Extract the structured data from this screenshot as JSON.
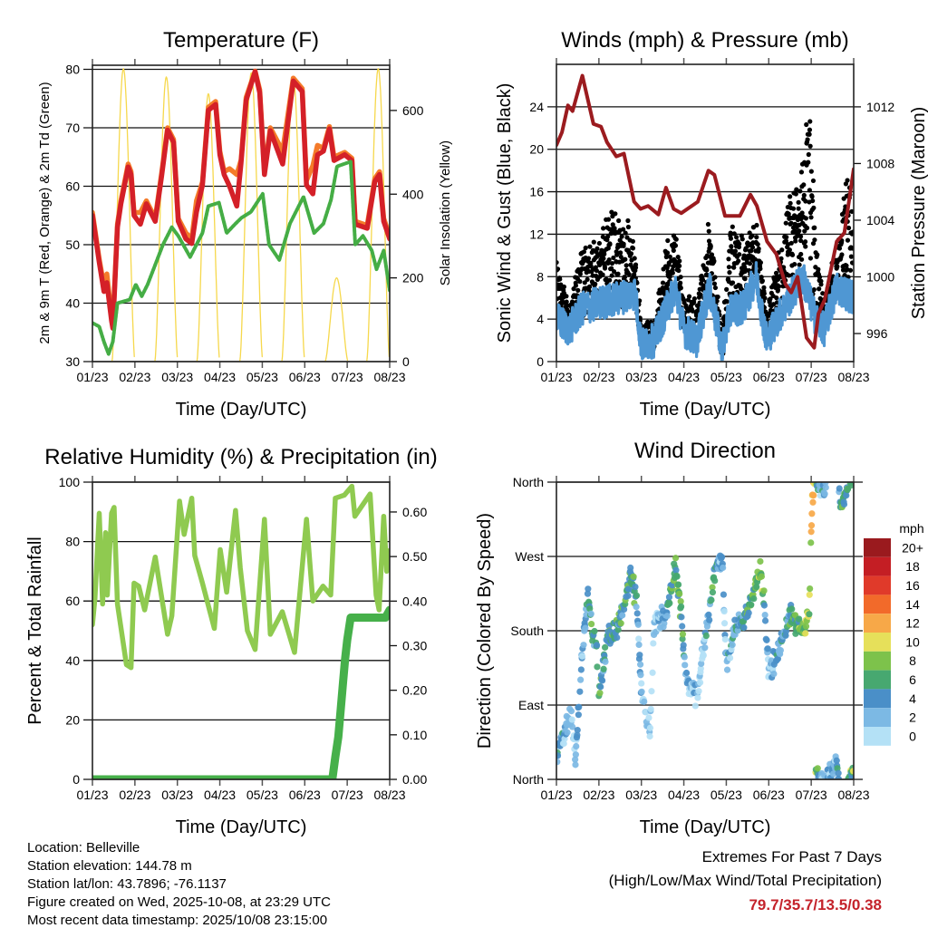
{
  "chart_data": [
    {
      "type": "line",
      "title": "Temperature (F)",
      "xlabel": "Time (Day/UTC)",
      "ylabel": "2m & 9m T (Red, Orange) & 2m Td (Green)",
      "ylabel_right": "Solar Insolation (Yellow)",
      "xlim_days": [
        0,
        7
      ],
      "xtick_labels": [
        "01/23",
        "02/23",
        "03/23",
        "04/23",
        "05/23",
        "06/23",
        "07/23",
        "08/23"
      ],
      "ylim": [
        30,
        80.7
      ],
      "yticks": [
        30,
        40,
        50,
        60,
        70,
        80
      ],
      "ytick_labels": [
        "30",
        "40",
        "50",
        "60",
        "70",
        "80"
      ],
      "ylim_right": [
        0,
        708
      ],
      "yticks_right": [
        0,
        200,
        400,
        600
      ],
      "ytick_labels_right": [
        "0",
        "200",
        "400",
        "600"
      ],
      "grid": true,
      "series": [
        {
          "name": "9m T",
          "color": "#f47b2a",
          "x": [
            0,
            0.16,
            0.27,
            0.34,
            0.45,
            0.48,
            0.59,
            0.67,
            0.84,
            0.91,
            0.98,
            1.13,
            1.27,
            1.48,
            1.63,
            1.77,
            1.91,
            2.02,
            2.2,
            2.34,
            2.45,
            2.59,
            2.73,
            2.9,
            3.0,
            3.1,
            3.23,
            3.4,
            3.5,
            3.62,
            3.83,
            3.94,
            4.05,
            4.19,
            4.48,
            4.73,
            4.94,
            5.04,
            5.19,
            5.3,
            5.44,
            5.58,
            5.69,
            5.94,
            6.11,
            6.19,
            6.47,
            6.65,
            6.76,
            6.86,
            7
          ],
          "y": [
            55.5,
            47.5,
            43,
            45,
            37.5,
            36.5,
            53.5,
            57.5,
            63.8,
            62.5,
            55.5,
            55.5,
            57.5,
            54.5,
            62.3,
            70,
            68,
            54.5,
            52,
            51,
            57.5,
            60.7,
            73.5,
            74.5,
            66,
            62.5,
            63,
            62,
            64.5,
            75.2,
            79.7,
            76.5,
            62.5,
            70,
            66,
            78.5,
            76.7,
            61,
            63.5,
            67,
            66.5,
            70.2,
            65,
            65.8,
            64.8,
            54,
            53.3,
            61.3,
            62.5,
            54.5,
            51.5
          ]
        },
        {
          "name": "2m T",
          "color": "#d42028",
          "x": [
            0,
            0.16,
            0.27,
            0.34,
            0.45,
            0.48,
            0.59,
            0.67,
            0.84,
            0.91,
            0.98,
            1.13,
            1.27,
            1.48,
            1.63,
            1.77,
            1.91,
            2.02,
            2.2,
            2.34,
            2.45,
            2.59,
            2.73,
            2.9,
            3.0,
            3.1,
            3.23,
            3.4,
            3.5,
            3.62,
            3.83,
            3.94,
            4.05,
            4.19,
            4.48,
            4.73,
            4.94,
            5.04,
            5.19,
            5.3,
            5.44,
            5.58,
            5.69,
            5.94,
            6.11,
            6.19,
            6.47,
            6.65,
            6.76,
            6.86,
            7
          ],
          "y": [
            55,
            47,
            42,
            43.5,
            37,
            35.7,
            53,
            57,
            63.3,
            62,
            55,
            53.5,
            57,
            54,
            61.8,
            69.6,
            67.5,
            54,
            51,
            50.2,
            55.6,
            60.2,
            73,
            74,
            65.4,
            62,
            60,
            56.6,
            64,
            74.7,
            79.6,
            76,
            62,
            69.5,
            63.8,
            78,
            76.2,
            60.2,
            58.7,
            65.4,
            66,
            69.8,
            64.4,
            65.4,
            64.4,
            53.5,
            52.8,
            60.8,
            62,
            54,
            51
          ]
        },
        {
          "name": "2m Td",
          "color": "#45ad45",
          "x": [
            0,
            0.16,
            0.27,
            0.38,
            0.48,
            0.59,
            0.88,
            1.02,
            1.16,
            1.3,
            1.66,
            1.87,
            2.02,
            2.3,
            2.59,
            2.73,
            2.98,
            3.16,
            3.37,
            3.51,
            3.73,
            4.01,
            4.16,
            4.4,
            4.65,
            4.97,
            5.22,
            5.44,
            5.62,
            5.76,
            6.08,
            6.19,
            6.37,
            6.58,
            6.69,
            6.86,
            7
          ],
          "y": [
            36.6,
            36,
            33.4,
            31.3,
            33.4,
            40,
            40.6,
            43.2,
            41.2,
            43.2,
            50,
            53,
            51.5,
            47.9,
            52,
            56.6,
            57.2,
            52,
            53.6,
            54.6,
            55.6,
            58.7,
            50,
            47.4,
            53.6,
            58.2,
            52,
            53.6,
            57.7,
            63.4,
            64.2,
            50,
            51.5,
            49,
            45.8,
            49,
            42.2
          ]
        }
      ],
      "solar": {
        "name": "Solar Insolation",
        "color": "#f6d84c",
        "peak_day": [
          0.73,
          1.74,
          2.73,
          3.74,
          4.73,
          5.75,
          6.73
        ],
        "peak_value": [
          700,
          680,
          640,
          690,
          680,
          200,
          700
        ],
        "halfwidth_days": 0.27
      }
    },
    {
      "type": "line",
      "title": "Winds (mph) & Pressure (mb)",
      "xlabel": "Time (Day/UTC)",
      "ylabel": "Sonic Wind & Gust (Blue, Black)",
      "ylabel_right": "Station Pressure (Maroon)",
      "xlim_days": [
        0,
        7
      ],
      "xtick_labels": [
        "01/23",
        "02/23",
        "03/23",
        "04/23",
        "05/23",
        "06/23",
        "07/23",
        "08/23"
      ],
      "ylim": [
        0,
        28
      ],
      "yticks": [
        0,
        4,
        8,
        12,
        16,
        20,
        24
      ],
      "ytick_labels": [
        "0",
        "4",
        "8",
        "12",
        "16",
        "20",
        "24"
      ],
      "ylim_right": [
        994.02,
        1015.0
      ],
      "yticks_right": [
        996,
        1000,
        1004,
        1008,
        1012
      ],
      "ytick_labels_right": [
        "996",
        "1000",
        "1004",
        "1008",
        "1012"
      ],
      "grid": true,
      "series": [
        {
          "name": "Sonic Wind",
          "color": "#4f97d3",
          "x": [
            0,
            0.3,
            0.6,
            1,
            1.5,
            1.85,
            2.0,
            2.3,
            2.6,
            2.8,
            3,
            3.3,
            3.6,
            3.9,
            4.1,
            4.4,
            4.7,
            4.95,
            5.2,
            5.5,
            5.8,
            6.1,
            6.3,
            6.6,
            7
          ],
          "y": [
            4,
            3,
            5,
            5.5,
            6,
            6.5,
            1.5,
            2,
            5,
            7,
            3,
            2,
            7,
            1,
            5,
            5,
            8,
            2,
            4,
            6,
            8,
            4,
            3,
            7,
            6
          ]
        },
        {
          "name": "Gust",
          "color": "#000000",
          "x": [
            0,
            0.3,
            0.6,
            1,
            1.3,
            1.7,
            1.9,
            2.0,
            2.3,
            2.6,
            2.8,
            3,
            3.3,
            3.6,
            3.9,
            4.1,
            4.4,
            4.7,
            4.95,
            5.2,
            5.5,
            5.8,
            5.95,
            6.1,
            6.3,
            6.6,
            6.85,
            7
          ],
          "y": [
            9,
            5,
            10,
            11,
            14,
            13,
            8,
            3,
            3,
            11,
            12,
            6,
            5,
            13,
            2,
            13,
            11,
            13,
            4,
            9,
            15,
            19,
            26,
            12,
            6,
            10,
            18,
            13
          ]
        },
        {
          "name": "Station Pressure",
          "color": "#9b1b1f",
          "axis": "right",
          "x": [
            0,
            0.13,
            0.27,
            0.38,
            0.61,
            0.87,
            1.05,
            1.19,
            1.41,
            1.59,
            1.83,
            1.98,
            2.16,
            2.4,
            2.58,
            2.76,
            2.94,
            3.33,
            3.58,
            3.72,
            3.97,
            4.32,
            4.57,
            4.72,
            4.96,
            5.18,
            5.39,
            5.53,
            5.68,
            5.89,
            6.07,
            6.17,
            6.32,
            6.6,
            6.78,
            7
          ],
          "y": [
            1009.3,
            1010.2,
            1012.1,
            1011.7,
            1014.2,
            1010.8,
            1010.6,
            1009.5,
            1008.5,
            1008.7,
            1005.3,
            1004.8,
            1005,
            1004.4,
            1006.3,
            1004.8,
            1004.5,
            1005.3,
            1007.5,
            1007.2,
            1004.3,
            1004.3,
            1005.8,
            1005,
            1002.5,
            1001.6,
            999.5,
            998.9,
            1000,
            995.7,
            995,
            997.4,
            998.4,
            1002.5,
            1003.1,
            1007.6
          ]
        }
      ]
    },
    {
      "type": "line",
      "title": "Relative Humidity (%) & Precipitation (in)",
      "xlabel": "Time (Day/UTC)",
      "ylabel": "Percent & Total Rainfall",
      "xlim_days": [
        0,
        7
      ],
      "xtick_labels": [
        "01/23",
        "02/23",
        "03/23",
        "04/23",
        "05/23",
        "06/23",
        "07/23",
        "08/23"
      ],
      "ylim": [
        0,
        100
      ],
      "yticks": [
        0,
        20,
        40,
        60,
        80,
        100
      ],
      "ytick_labels": [
        "0",
        "20",
        "40",
        "60",
        "80",
        "100"
      ],
      "ylim_right": [
        0,
        0.667
      ],
      "yticks_right": [
        0,
        0.1,
        0.2,
        0.3,
        0.4,
        0.5,
        0.6
      ],
      "ytick_labels_right": [
        "0.00",
        "0.10",
        "0.20",
        "0.30",
        "0.40",
        "0.50",
        "0.60"
      ],
      "grid": true,
      "series": [
        {
          "name": "Relative Humidity",
          "color": "#8fca50",
          "x": [
            0,
            0.06,
            0.16,
            0.24,
            0.31,
            0.35,
            0.45,
            0.51,
            0.59,
            0.8,
            0.91,
            0.98,
            1.09,
            1.23,
            1.48,
            1.77,
            1.87,
            2.05,
            2.16,
            2.34,
            2.41,
            2.59,
            2.87,
            3.01,
            3.16,
            3.37,
            3.48,
            3.65,
            3.83,
            4.05,
            4.19,
            4.47,
            4.76,
            5.04,
            5.19,
            5.43,
            5.61,
            5.72,
            5.93,
            6.11,
            6.18,
            6.54,
            6.68,
            6.75,
            6.86,
            6.93,
            7
          ],
          "y": [
            52,
            61,
            89.5,
            59,
            83,
            62,
            89.5,
            91.5,
            59,
            38.6,
            37.6,
            66,
            65,
            57,
            74.8,
            48.8,
            55,
            93.6,
            82.4,
            94.6,
            75.3,
            66,
            50.8,
            77.3,
            63,
            90.5,
            71.2,
            50,
            43.7,
            87.5,
            48.8,
            56.4,
            42.7,
            87.5,
            60,
            65,
            62,
            94.6,
            95.6,
            98.6,
            88.5,
            96,
            62,
            57,
            88.5,
            70,
            77
          ]
        },
        {
          "name": "Total Precipitation",
          "color": "#46b04a",
          "axis": "right",
          "x": [
            0,
            5.65,
            5.72,
            5.79,
            5.85,
            5.9,
            5.95,
            6.0,
            6.08,
            6.9,
            7
          ],
          "y": [
            0,
            0,
            0.05,
            0.095,
            0.16,
            0.217,
            0.27,
            0.312,
            0.363,
            0.363,
            0.38
          ]
        }
      ]
    },
    {
      "type": "scatter",
      "title": "Wind Direction",
      "xlabel": "Time (Day/UTC)",
      "ylabel": "Direction (Colored By Speed)",
      "xlim_days": [
        0,
        7
      ],
      "xtick_labels": [
        "01/23",
        "02/23",
        "03/23",
        "04/23",
        "05/23",
        "06/23",
        "07/23",
        "08/23"
      ],
      "ylim": [
        0,
        360
      ],
      "yticks": [
        0,
        90,
        180,
        270,
        360
      ],
      "ytick_labels": [
        "North",
        "East",
        "South",
        "West",
        "North"
      ],
      "grid": true,
      "direction": {
        "x": [
          0,
          0.35,
          0.45,
          0.6,
          0.75,
          0.85,
          0.95,
          1.0,
          1.2,
          1.5,
          1.75,
          1.9,
          2.0,
          2.2,
          2.3,
          2.6,
          2.8,
          2.95,
          3.05,
          3.3,
          3.5,
          3.7,
          3.9,
          4.0,
          4.2,
          4.5,
          4.8,
          4.9,
          5.0,
          5.2,
          5.5,
          5.8,
          5.95,
          6.02,
          6.1,
          6.3,
          6.6,
          6.7,
          6.9,
          7
        ],
        "direction_deg_unwrapped": [
          30,
          80,
          20,
          150,
          230,
          170,
          160,
          100,
          170,
          190,
          250,
          210,
          110,
          60,
          190,
          200,
          260,
          190,
          120,
          100,
          170,
          240,
          270,
          140,
          180,
          200,
          260,
          210,
          130,
          150,
          200,
          180,
          200,
          340,
          365,
          355,
          380,
          330,
          360,
          365
        ]
      },
      "speed": {
        "x": [
          0,
          0.5,
          0.8,
          1.2,
          1.5,
          1.8,
          2.0,
          2.3,
          2.7,
          2.9,
          3.1,
          3.4,
          3.7,
          3.9,
          4.3,
          4.7,
          4.8,
          5.0,
          5.3,
          5.6,
          5.9,
          6.05,
          6.2,
          6.5,
          6.8,
          7
        ],
        "speed_mph": [
          4,
          3,
          6,
          6,
          6,
          7,
          2,
          1,
          6,
          8,
          3,
          2,
          7,
          3,
          5,
          8,
          10,
          2,
          5,
          7,
          9,
          11,
          4,
          3,
          7,
          8
        ]
      },
      "colorbar": {
        "title": "mph",
        "labels": [
          "0",
          "2",
          "4",
          "6",
          "8",
          "10",
          "12",
          "14",
          "16",
          "18",
          "20+"
        ],
        "colors": [
          "#b4e1f6",
          "#7cb9e4",
          "#4a8fc8",
          "#47a870",
          "#7dc24b",
          "#e6e05a",
          "#f7a848",
          "#f26a2a",
          "#e03a2a",
          "#c41e24",
          "#9a1a1e"
        ]
      }
    }
  ],
  "footer": {
    "location": "Location: Belleville",
    "elevation": "Station elevation: 144.78 m",
    "latlon": "Station lat/lon: 43.7896; -76.1137",
    "created": "Figure created on Wed, 2025-10-08, at 23:29 UTC",
    "recent": "Most recent data timestamp: 2025/10/08 23:15:00",
    "extremes_title": "Extremes For Past 7 Days",
    "extremes_subtitle": "(High/Low/Max Wind/Total Precipitation)",
    "extremes_values": "79.7/35.7/13.5/0.38",
    "extremes_color": "#c4232b"
  }
}
